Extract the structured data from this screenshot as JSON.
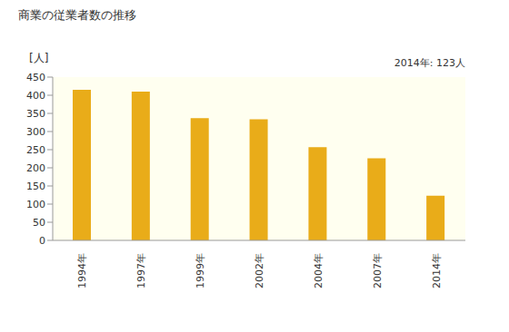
{
  "chart_data": {
    "type": "bar",
    "title": "商業の従業者数の推移",
    "y_label": "[人]",
    "annotation": "2014年: 123人",
    "categories": [
      "1994年",
      "1997年",
      "1999年",
      "2002年",
      "2004年",
      "2007年",
      "2014年"
    ],
    "values": [
      415,
      410,
      337,
      334,
      257,
      226,
      123
    ],
    "color": "#e9ac19",
    "ylim": [
      0,
      450
    ],
    "yticks": [
      0,
      50,
      100,
      150,
      200,
      250,
      300,
      350,
      400,
      450
    ],
    "grid": false
  }
}
